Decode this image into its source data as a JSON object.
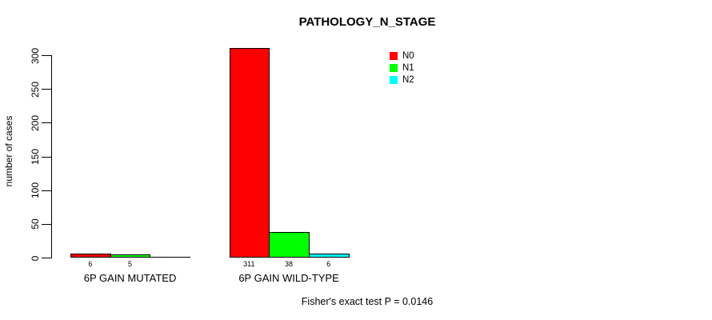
{
  "chart_data": {
    "type": "bar",
    "title": "PATHOLOGY_N_STAGE",
    "ylabel": "number of cases",
    "xlabel": "",
    "ylim": [
      0,
      300
    ],
    "yticks": [
      0,
      50,
      100,
      150,
      200,
      250,
      300
    ],
    "grid": false,
    "categories": [
      "6P GAIN MUTATED",
      "6P GAIN WILD-TYPE"
    ],
    "series": [
      {
        "name": "N0",
        "color": "#ff0000",
        "values": [
          6,
          311
        ]
      },
      {
        "name": "N1",
        "color": "#00ff00",
        "values": [
          5,
          38
        ]
      },
      {
        "name": "N2",
        "color": "#00ffff",
        "values": [
          0,
          6
        ]
      }
    ],
    "bar_count_labels": [
      [
        "6",
        "5",
        ""
      ],
      [
        "311",
        "38",
        "6"
      ]
    ],
    "legend": {
      "position": "top-right",
      "entries": [
        "N0",
        "N1",
        "N2"
      ]
    },
    "footer": "Fisher's exact test P = 0.0146"
  }
}
